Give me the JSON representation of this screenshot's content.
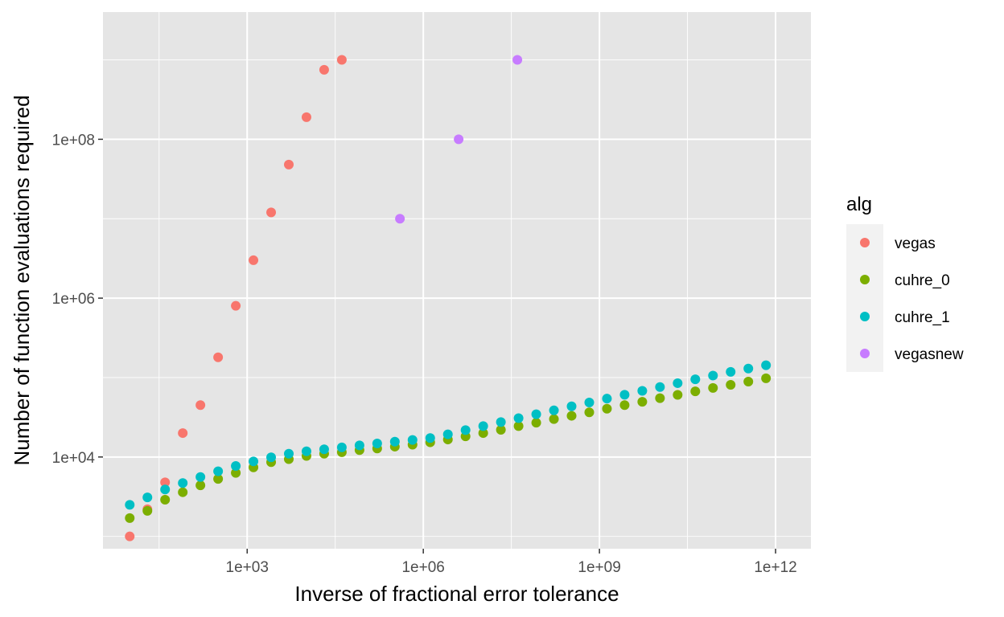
{
  "chart_data": {
    "type": "scatter",
    "title": "",
    "xlabel": "Inverse of fractional error tolerance",
    "ylabel": "Number of function evaluations required",
    "x_scale": "log10",
    "y_scale": "log10",
    "xlim": [
      3.5,
      4000000000000
    ],
    "ylim": [
      700,
      4000000000
    ],
    "x_ticks": [
      1000,
      1000000,
      1000000000,
      1000000000000
    ],
    "x_tick_labels": [
      "1e+03",
      "1e+06",
      "1e+09",
      "1e+12"
    ],
    "y_ticks": [
      10000,
      1000000,
      100000000
    ],
    "y_tick_labels": [
      "1e+04",
      "1e+06",
      "1e+08"
    ],
    "grid": true,
    "legend_title": "alg",
    "legend_position": "right",
    "colors": {
      "panel_background": "#e5e5e5",
      "grid": "#ffffff",
      "legend_key_background": "#f2f2f2"
    },
    "series": [
      {
        "name": "vegas",
        "color": "#F8766D",
        "x": [
          10,
          20,
          40,
          80,
          160,
          320,
          640,
          1280,
          2560,
          5120,
          10240,
          20480,
          40960
        ],
        "y": [
          1000,
          2200,
          4800,
          20000,
          45000,
          180000,
          800000,
          3000000,
          12000000,
          48000000,
          190000000,
          750000000,
          1000000000
        ]
      },
      {
        "name": "cuhre_0",
        "color": "#7CAE00",
        "x": [
          10,
          20,
          40,
          80,
          160,
          320,
          640,
          1280,
          2560,
          5120,
          10240,
          20480,
          40960,
          81920,
          163840,
          327680,
          655360,
          1310720,
          2621440,
          5242880,
          10485760,
          20971520,
          41943040,
          83886080,
          167772160,
          335544320,
          671088640,
          1342177280,
          2684354560,
          5368709120,
          10737418240,
          21474836480,
          42949672960,
          85899345920,
          171798691840,
          343597383680,
          687194767360
        ],
        "y": [
          1700,
          2100,
          2900,
          3600,
          4400,
          5300,
          6300,
          7400,
          8600,
          9400,
          10300,
          11000,
          11500,
          12200,
          12800,
          13500,
          14300,
          15300,
          16600,
          18200,
          20000,
          22000,
          24500,
          27000,
          30000,
          33000,
          36500,
          40500,
          45000,
          49500,
          55000,
          60500,
          67000,
          74000,
          81000,
          89000,
          98000
        ]
      },
      {
        "name": "cuhre_1",
        "color": "#00BFC4",
        "x": [
          10,
          20,
          40,
          80,
          160,
          320,
          640,
          1280,
          2560,
          5120,
          10240,
          20480,
          40960,
          81920,
          163840,
          327680,
          655360,
          1310720,
          2621440,
          5242880,
          10485760,
          20971520,
          41943040,
          83886080,
          167772160,
          335544320,
          671088640,
          1342177280,
          2684354560,
          5368709120,
          10737418240,
          21474836480,
          42949672960,
          85899345920,
          171798691840,
          343597383680,
          687194767360
        ],
        "y": [
          2500,
          3100,
          3900,
          4700,
          5600,
          6600,
          7700,
          8800,
          9900,
          11000,
          11800,
          12500,
          13200,
          14000,
          14800,
          15600,
          16400,
          17300,
          19300,
          21800,
          24500,
          27500,
          30800,
          34500,
          38700,
          43400,
          48500,
          54300,
          60700,
          68000,
          76000,
          85000,
          95000,
          106000,
          118000,
          130000,
          143000
        ]
      },
      {
        "name": "vegasnew",
        "color": "#C77CFF",
        "x": [
          400000,
          4000000,
          40000000
        ],
        "y": [
          10000000,
          100000000,
          1000000000
        ]
      }
    ]
  }
}
